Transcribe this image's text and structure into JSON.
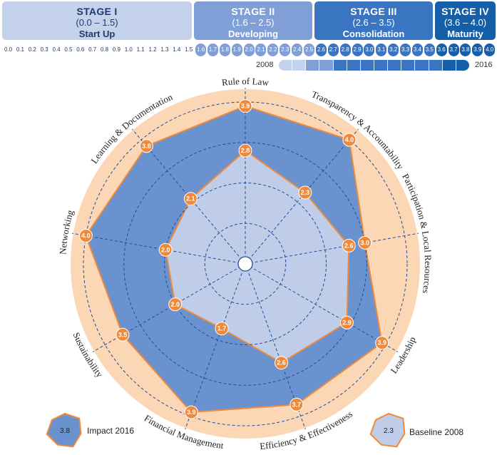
{
  "stages": [
    {
      "title": "STAGE I",
      "range": "(0.0 – 1.5)",
      "label": "Start Up"
    },
    {
      "title": "STAGE II",
      "range": "(1.6 – 2.5)",
      "label": "Developing"
    },
    {
      "title": "STAGE III",
      "range": "(2.6 – 3.5)",
      "label": "Consolidation"
    },
    {
      "title": "STAGE IV",
      "range": "(3.6 – 4.0)",
      "label": "Maturity"
    }
  ],
  "scale_ticks": [
    "0.0",
    "0.1",
    "0.2",
    "0.3",
    "0.4",
    "0.5",
    "0.6",
    "0.7",
    "0.8",
    "0.9",
    "1.0",
    "1.1",
    "1.2",
    "1.3",
    "1.4",
    "1.5",
    "1.6",
    "1.7",
    "1.8",
    "1.9",
    "2.0",
    "2.1",
    "2.2",
    "2.3",
    "2.4",
    "2.5",
    "2.6",
    "2.7",
    "2.8",
    "2.9",
    "3.0",
    "3.1",
    "3.2",
    "3.3",
    "3.4",
    "3.5",
    "3.6",
    "3.7",
    "3.8",
    "3.9",
    "4.0"
  ],
  "timeline": {
    "start": "2008",
    "end": "2016"
  },
  "colors": {
    "stage1": "#c5d2ec",
    "stage2": "#7f9fd6",
    "stage3": "#3a75c2",
    "stage4": "#155fa8",
    "impact_fill": "#6a92cf",
    "baseline_fill": "#bfcde9",
    "outline": "#ef8a3c",
    "outer_ring": "#fbd7b6",
    "marker": "#ef8a3c"
  },
  "chart_data": {
    "type": "radar",
    "axes": [
      "Rule of Law",
      "Transparency & Accountability",
      "Participation & Local Resources",
      "Leadership",
      "Efficiency & Effectiveness",
      "Financial Management",
      "Sustainability",
      "Networking",
      "Learning & Documentation"
    ],
    "rlim": [
      0,
      4.0
    ],
    "grid": true,
    "series": [
      {
        "name": "Impact 2016",
        "values": [
          3.9,
          4.0,
          3.0,
          3.9,
          3.7,
          3.9,
          3.5,
          4.0,
          3.8
        ]
      },
      {
        "name": "Baseline 2008",
        "values": [
          2.8,
          2.3,
          2.6,
          2.9,
          2.6,
          1.7,
          2.0,
          2.0,
          2.1
        ]
      }
    ],
    "legend": [
      {
        "label": "Impact 2016",
        "sample": "3.8"
      },
      {
        "label": "Baseline 2008",
        "sample": "2.3"
      }
    ],
    "legend_placement": "bottom"
  }
}
